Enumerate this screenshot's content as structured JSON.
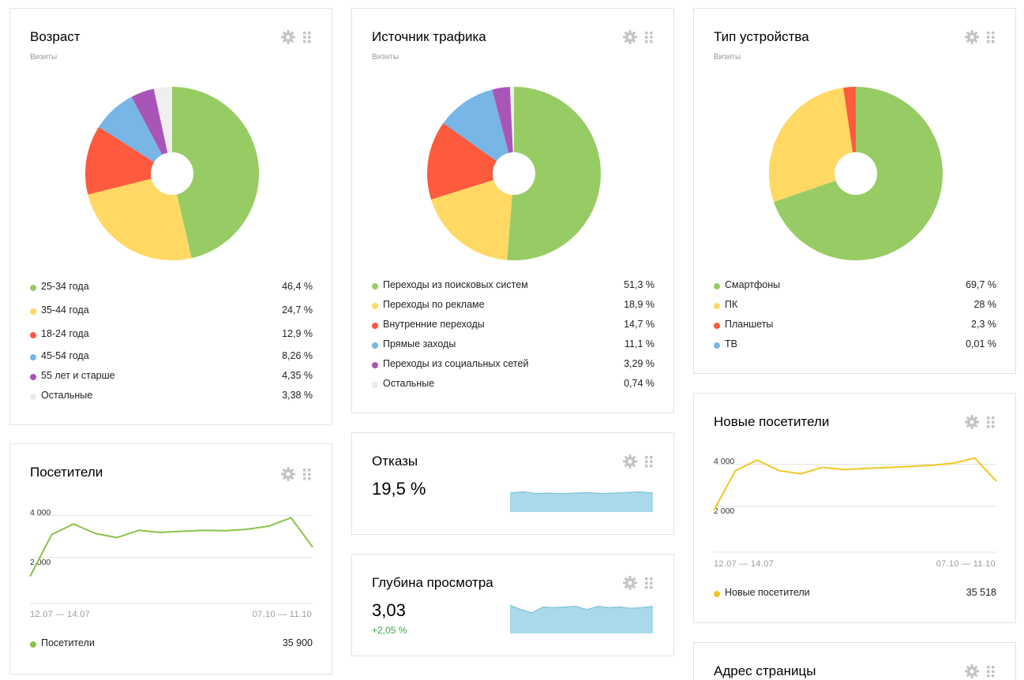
{
  "cards": {
    "age": {
      "title": "Возраст",
      "subtitle": "Визиты",
      "chart_data": {
        "type": "pie",
        "categories": [
          "25-34 года",
          "35-44 года",
          "18-24 года",
          "45-54 года",
          "55 лет и старше",
          "Остальные"
        ],
        "values": [
          46.4,
          24.7,
          12.9,
          8.26,
          4.35,
          3.38
        ],
        "labels": [
          "46,4 %",
          "24,7 %",
          "12,9 %",
          "8,26 %",
          "4,35 %",
          "3,38 %"
        ],
        "colors": [
          "#97cc64",
          "#ffd963",
          "#fd5a3e",
          "#77b6e7",
          "#a955b8",
          "#efefef"
        ]
      }
    },
    "traffic": {
      "title": "Источник трафика",
      "subtitle": "Визиты",
      "chart_data": {
        "type": "pie",
        "categories": [
          "Переходы из поисковых систем",
          "Переходы по рекламе",
          "Внутренние переходы",
          "Прямые заходы",
          "Переходы из социальных сетей",
          "Остальные"
        ],
        "values": [
          51.3,
          18.9,
          14.7,
          11.1,
          3.29,
          0.74
        ],
        "labels": [
          "51,3 %",
          "18,9 %",
          "14,7 %",
          "11,1 %",
          "3,29 %",
          "0,74 %"
        ],
        "colors": [
          "#97cc64",
          "#ffd963",
          "#fd5a3e",
          "#77b6e7",
          "#a955b8",
          "#efefef"
        ]
      }
    },
    "device": {
      "title": "Тип устройства",
      "subtitle": "Визиты",
      "chart_data": {
        "type": "pie",
        "categories": [
          "Смартфоны",
          "ПК",
          "Планшеты",
          "ТВ"
        ],
        "values": [
          69.7,
          28,
          2.3,
          0.01
        ],
        "labels": [
          "69,7 %",
          "28 %",
          "2,3 %",
          "0,01 %"
        ],
        "colors": [
          "#97cc64",
          "#ffd963",
          "#fd5a3e",
          "#77b6e7"
        ]
      }
    },
    "visitors": {
      "title": "Посетители",
      "y_ticks": [
        "4 000",
        "2 000"
      ],
      "date_start": "12.07 — 14.07",
      "date_end": "07.10 — 11.10",
      "series_name": "Посетители",
      "total": "35 900",
      "color": "#8ac24a",
      "chart_data": {
        "type": "line",
        "ylim": [
          0,
          5000
        ],
        "y_ticks": [
          4000,
          2000
        ],
        "values": [
          1100,
          3100,
          3600,
          3150,
          2950,
          3300,
          3200,
          3250,
          3300,
          3280,
          3350,
          3500,
          3900,
          2500
        ]
      }
    },
    "bounce": {
      "title": "Отказы",
      "value": "19,5 %",
      "spark_color": "#a9d9ea",
      "chart_data": {
        "type": "area",
        "values": [
          0.8,
          0.85,
          0.78,
          0.8,
          0.77,
          0.8,
          0.82,
          0.78,
          0.8,
          0.82,
          0.85,
          0.8
        ]
      }
    },
    "depth": {
      "title": "Глубина просмотра",
      "value": "3,03",
      "delta": "+2,05 %",
      "spark_color": "#a9d9ea",
      "chart_data": {
        "type": "area",
        "values": [
          0.85,
          0.72,
          0.62,
          0.8,
          0.78,
          0.8,
          0.82,
          0.72,
          0.82,
          0.78,
          0.8,
          0.76,
          0.78,
          0.82
        ]
      }
    },
    "new_visitors": {
      "title": "Новые посетители",
      "y_ticks": [
        "4 000",
        "2 000"
      ],
      "date_start": "12.07 — 14.07",
      "date_end": "07.10 — 11.10",
      "series_name": "Новые посетители",
      "total": "35 518",
      "color": "#f3c623",
      "chart_data": {
        "type": "line",
        "ylim": [
          0,
          5000
        ],
        "y_ticks": [
          4000,
          2000
        ],
        "values": [
          1800,
          3700,
          4200,
          3700,
          3550,
          3850,
          3750,
          3800,
          3850,
          3900,
          3950,
          4050,
          4300,
          3200
        ]
      }
    },
    "page_address": {
      "title": "Адрес страницы"
    }
  },
  "icons": {
    "gear": "gear-icon",
    "grip": "drag-handle-icon"
  }
}
